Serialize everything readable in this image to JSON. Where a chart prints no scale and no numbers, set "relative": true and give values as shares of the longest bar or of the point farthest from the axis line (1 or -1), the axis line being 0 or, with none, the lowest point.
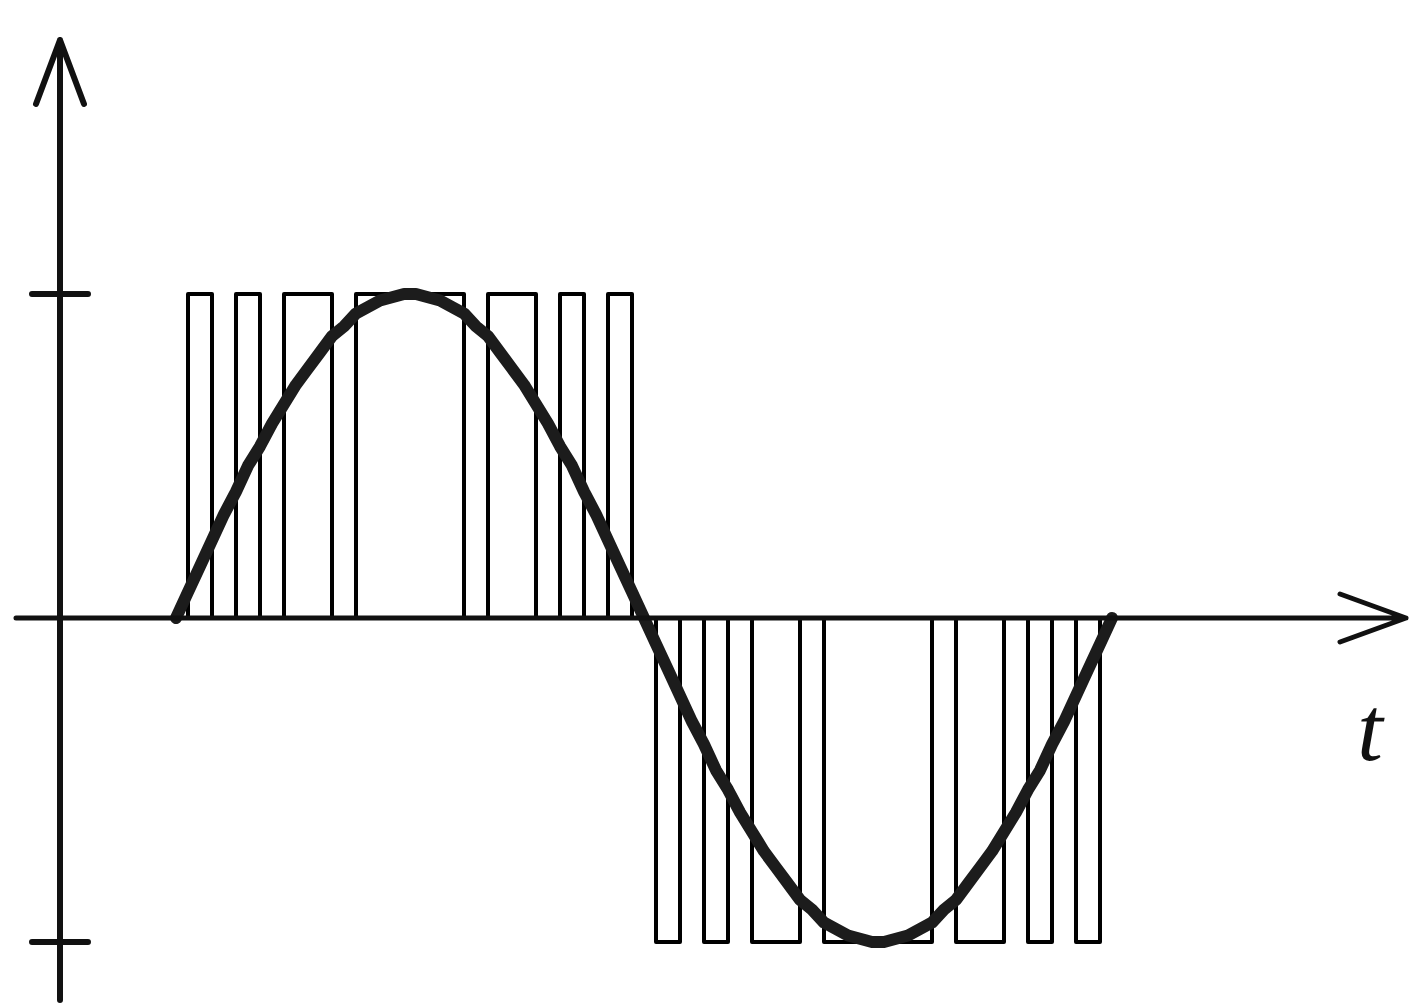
{
  "chart_data": {
    "type": "line",
    "relative": true,
    "xlabel": "t",
    "categories": [
      null,
      null,
      null,
      null,
      null,
      null,
      null,
      null,
      null,
      null,
      null,
      null,
      null,
      null,
      null,
      null,
      null,
      null,
      null,
      null,
      null,
      null,
      null,
      null,
      null,
      null,
      null,
      null,
      null,
      null,
      null,
      null,
      null,
      null,
      null,
      null,
      null,
      null,
      null,
      null,
      null,
      null,
      null,
      null,
      null,
      null,
      null,
      null,
      null,
      null,
      null,
      null,
      null,
      null,
      null,
      null,
      null,
      null,
      null,
      null,
      null,
      null,
      null,
      null,
      null,
      null,
      null,
      null,
      null,
      null,
      null,
      null,
      null,
      null,
      null,
      null,
      null,
      null,
      null
    ],
    "series": [
      {
        "type": "step",
        "color": "#000000",
        "values": [
          0,
          1,
          1,
          0,
          0,
          1,
          1,
          0,
          0,
          1,
          1,
          1,
          1,
          0,
          0,
          1,
          1,
          1,
          1,
          1,
          1,
          1,
          1,
          1,
          0,
          0,
          1,
          1,
          1,
          1,
          0,
          0,
          1,
          1,
          0,
          0,
          1,
          1,
          0,
          0,
          -1,
          -1,
          0,
          0,
          -1,
          -1,
          0,
          0,
          -1,
          -1,
          -1,
          -1,
          0,
          0,
          -1,
          -1,
          -1,
          -1,
          -1,
          -1,
          -1,
          -1,
          -1,
          0,
          0,
          -1,
          -1,
          -1,
          -1,
          0,
          0,
          -1,
          -1,
          0,
          0,
          -1,
          -1,
          0,
          0
        ]
      },
      {
        "type": "line",
        "color": "#1c1c1c",
        "values": [
          0,
          0.08,
          0.16,
          0.24,
          0.32,
          0.39,
          0.47,
          0.53,
          0.6,
          0.66,
          0.72,
          0.77,
          0.82,
          0.87,
          0.9,
          0.94,
          0.96,
          0.98,
          0.99,
          1,
          1,
          0.99,
          0.98,
          0.96,
          0.94,
          0.9,
          0.87,
          0.82,
          0.77,
          0.72,
          0.66,
          0.6,
          0.53,
          0.47,
          0.39,
          0.32,
          0.24,
          0.16,
          0.08,
          0,
          -0.08,
          -0.16,
          -0.24,
          -0.32,
          -0.39,
          -0.47,
          -0.53,
          -0.6,
          -0.66,
          -0.72,
          -0.77,
          -0.82,
          -0.87,
          -0.9,
          -0.94,
          -0.96,
          -0.98,
          -0.99,
          -1,
          -1,
          -0.99,
          -0.98,
          -0.96,
          -0.94,
          -0.9,
          -0.87,
          -0.82,
          -0.77,
          -0.72,
          -0.66,
          -0.6,
          -0.53,
          -0.47,
          -0.39,
          -0.32,
          -0.24,
          -0.16,
          -0.08,
          0
        ]
      }
    ]
  }
}
